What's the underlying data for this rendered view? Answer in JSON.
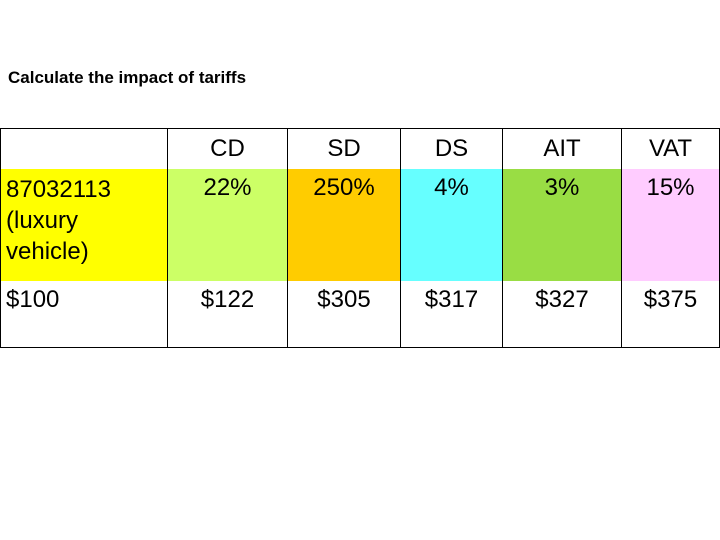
{
  "title": "Calculate the impact of tariffs",
  "product": {
    "code": "87032113",
    "desc_line1": "(luxury",
    "desc_line2": "vehicle)",
    "price": "$100"
  },
  "columns": [
    {
      "name": "CD",
      "rate": "22%",
      "value": "$122",
      "color": "#ccff66"
    },
    {
      "name": "SD",
      "rate": "250%",
      "value": "$305",
      "color": "#ffcc00"
    },
    {
      "name": "DS",
      "rate": "4%",
      "value": "$317",
      "color": "#66ffff"
    },
    {
      "name": "AIT",
      "rate": "3%",
      "value": "$327",
      "color": "#99dd44"
    },
    {
      "name": "VAT",
      "rate": "15%",
      "value": "$375",
      "color": "#ffccff"
    }
  ]
}
